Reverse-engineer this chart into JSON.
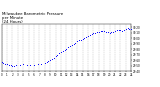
{
  "title": "Milwaukee Barometric Pressure\nper Minute\n(24 Hours)",
  "title_fontsize": 2.8,
  "title_loc": "left",
  "background_color": "#ffffff",
  "plot_bg_color": "#ffffff",
  "dot_color": "#0000ff",
  "dot_size": 0.5,
  "grid_color": "#bbbbbb",
  "grid_style": "--",
  "x_label_fontsize": 2.0,
  "y_label_fontsize": 2.0,
  "xlim": [
    0,
    1440
  ],
  "ylim": [
    29.4,
    30.25
  ],
  "xtick_positions": [
    0,
    60,
    120,
    180,
    240,
    300,
    360,
    420,
    480,
    540,
    600,
    660,
    720,
    780,
    840,
    900,
    960,
    1020,
    1080,
    1140,
    1200,
    1260,
    1320,
    1380,
    1440
  ],
  "xtick_labels": [
    "0",
    "1",
    "2",
    "3",
    "4",
    "5",
    "6",
    "7",
    "8",
    "9",
    "10",
    "11",
    "12",
    "13",
    "14",
    "15",
    "16",
    "17",
    "18",
    "19",
    "20",
    "21",
    "22",
    "23",
    "24"
  ],
  "ytick_positions": [
    29.4,
    29.5,
    29.6,
    29.7,
    29.8,
    29.9,
    30.0,
    30.1,
    30.2
  ],
  "ytick_labels": [
    "29.40",
    "29.50",
    "29.60",
    "29.70",
    "29.80",
    "29.90",
    "30.00",
    "30.10",
    "30.20"
  ],
  "data_x": [
    0,
    20,
    40,
    60,
    80,
    100,
    120,
    140,
    160,
    200,
    240,
    280,
    320,
    360,
    400,
    440,
    480,
    500,
    520,
    540,
    560,
    580,
    600,
    620,
    640,
    660,
    680,
    700,
    720,
    740,
    760,
    780,
    800,
    820,
    840,
    860,
    880,
    900,
    920,
    940,
    960,
    980,
    1000,
    1020,
    1040,
    1060,
    1080,
    1100,
    1120,
    1140,
    1160,
    1180,
    1200,
    1220,
    1240,
    1260,
    1280,
    1300,
    1320,
    1340,
    1360,
    1380,
    1400,
    1420,
    1440
  ],
  "data_y": [
    29.56,
    29.55,
    29.54,
    29.53,
    29.52,
    29.51,
    29.49,
    29.5,
    29.51,
    29.52,
    29.53,
    29.52,
    29.51,
    29.52,
    29.53,
    29.54,
    29.55,
    29.56,
    29.58,
    29.6,
    29.62,
    29.65,
    29.68,
    29.7,
    29.73,
    29.75,
    29.77,
    29.79,
    29.81,
    29.84,
    29.86,
    29.88,
    29.9,
    29.92,
    29.94,
    29.96,
    29.97,
    29.98,
    30.0,
    30.02,
    30.04,
    30.06,
    30.08,
    30.09,
    30.1,
    30.11,
    30.12,
    30.13,
    30.13,
    30.13,
    30.12,
    30.11,
    30.1,
    30.11,
    30.12,
    30.13,
    30.14,
    30.15,
    30.14,
    30.13,
    30.15,
    30.17,
    30.19,
    30.17,
    30.16
  ]
}
